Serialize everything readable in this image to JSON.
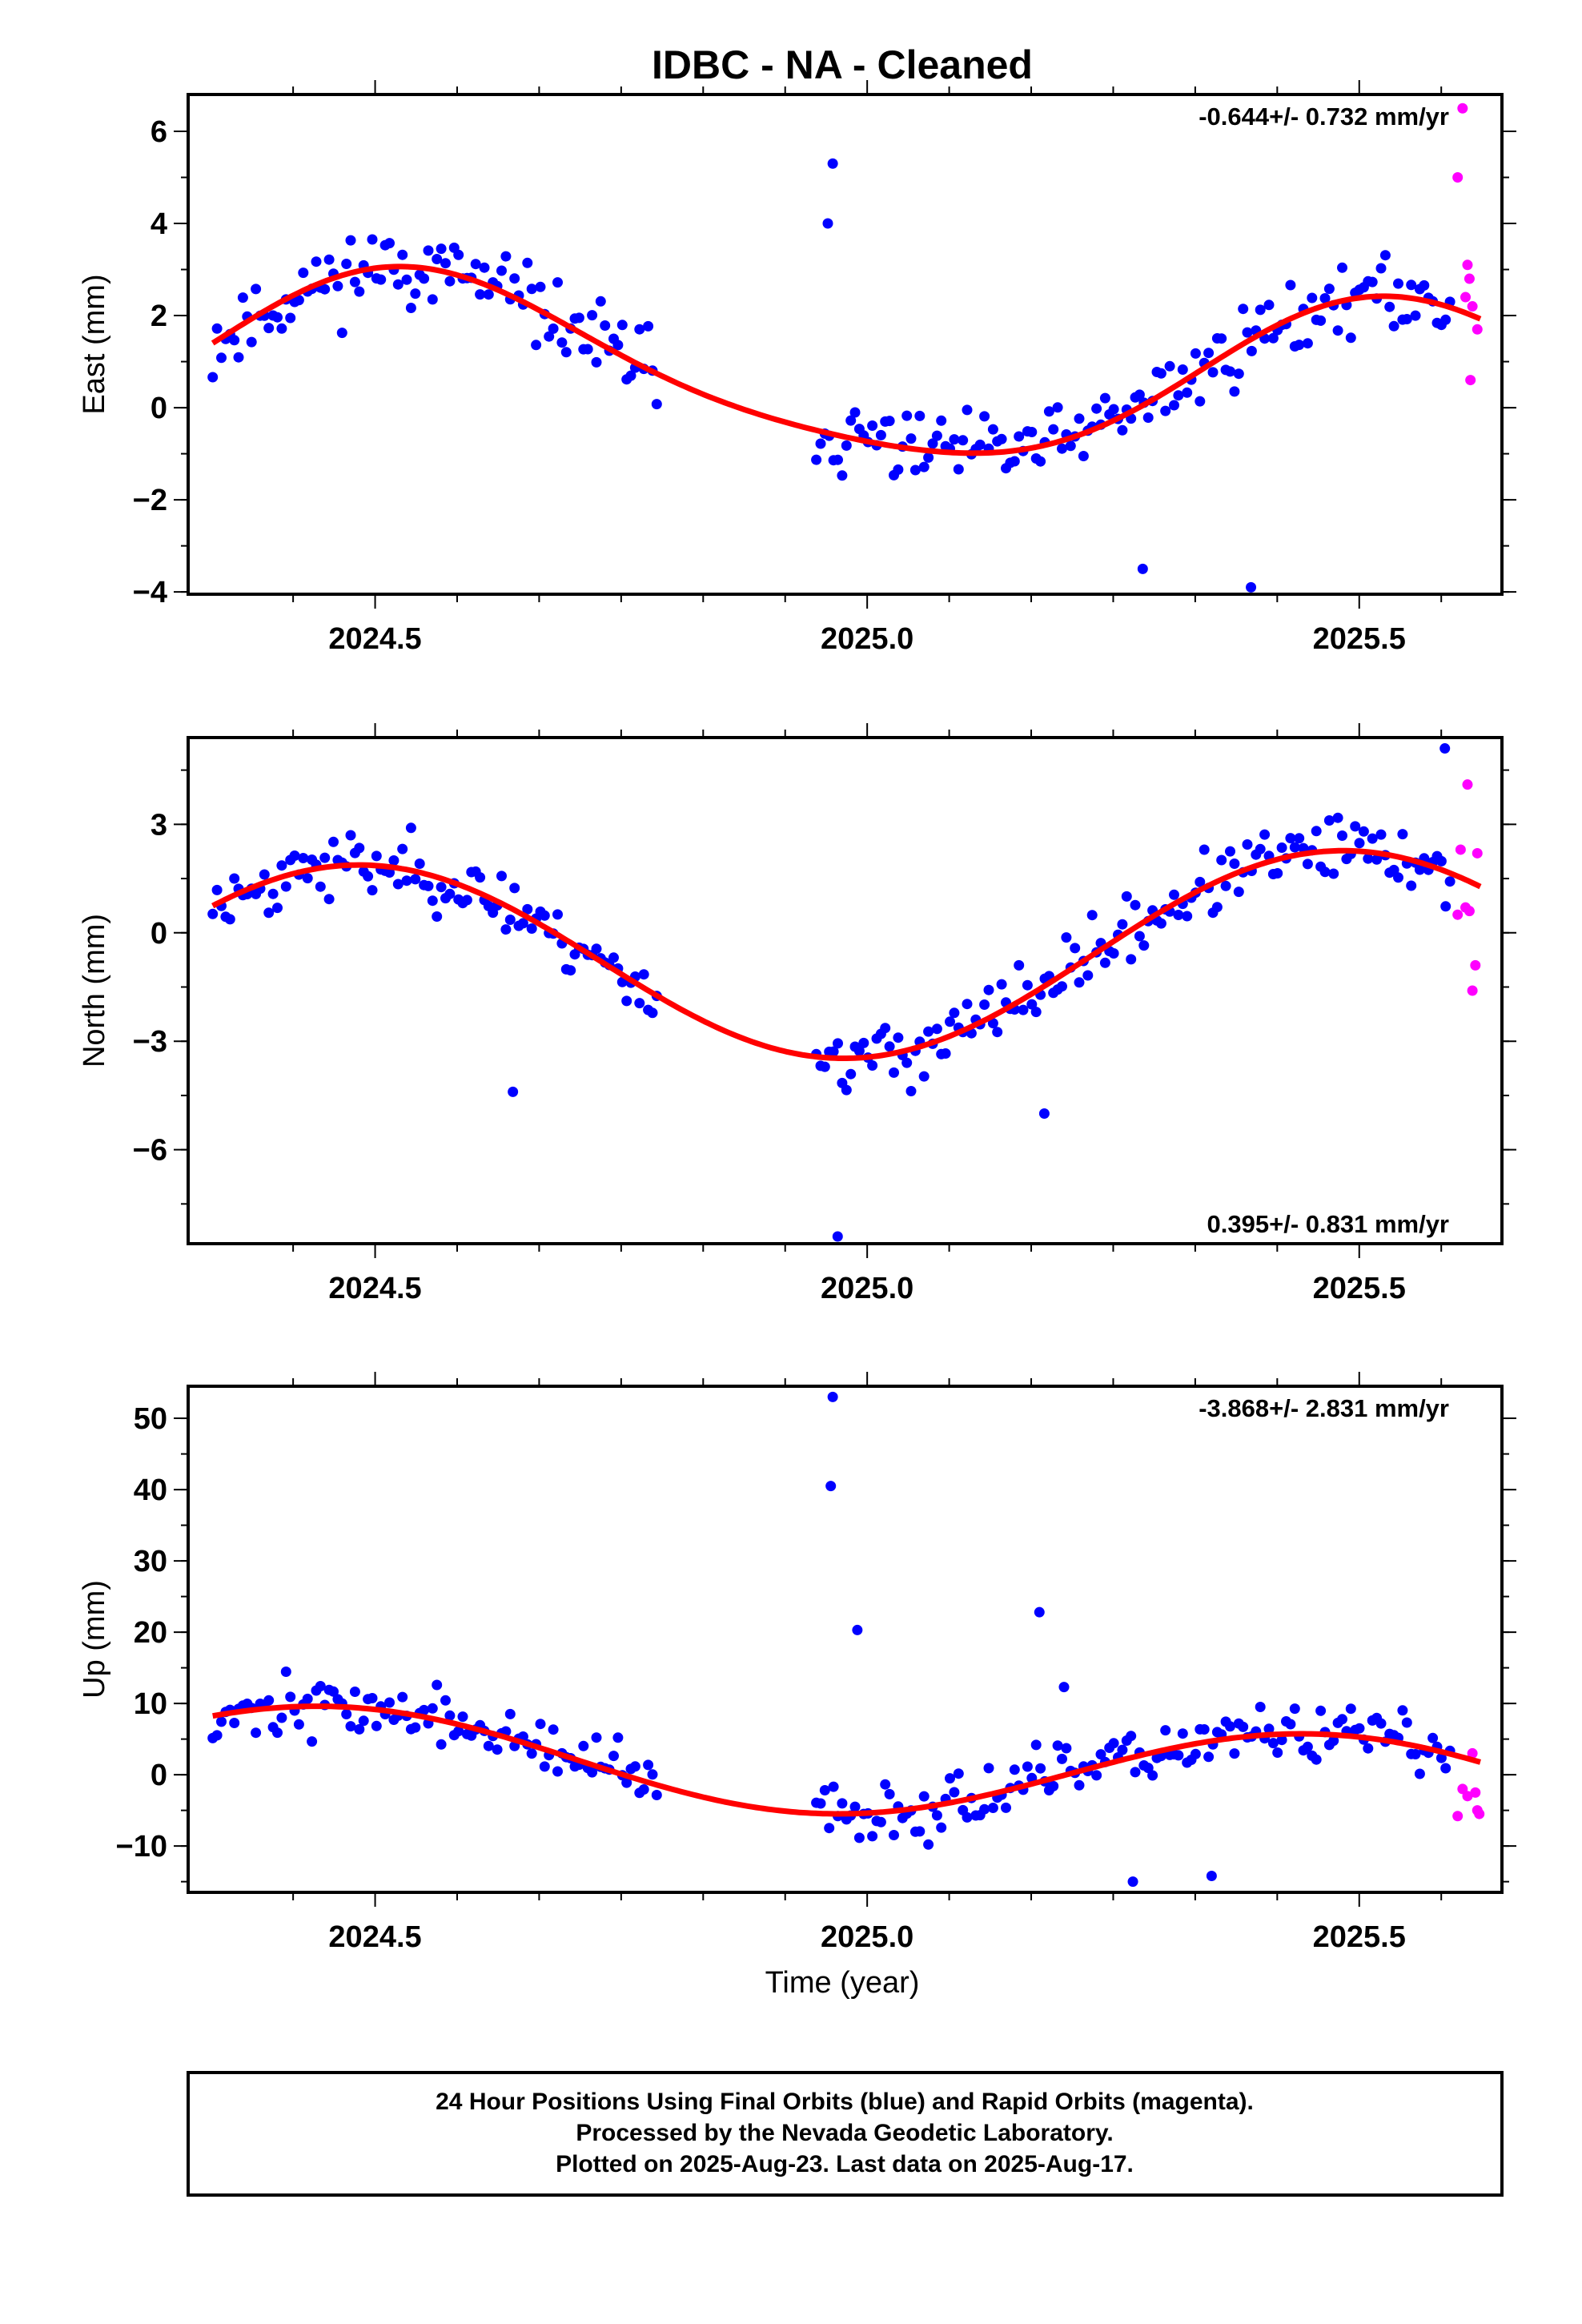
{
  "title": "IDBC  - NA - Cleaned",
  "colors": {
    "final": "#0000ff",
    "rapid": "#ff00ff",
    "fit": "#ff0000"
  },
  "xlabel": "Time (year)",
  "xrange": [
    2024.31,
    2025.645
  ],
  "xticks": [
    2024.5,
    2025.0,
    2025.5
  ],
  "xtick_labels": [
    "2024.5",
    "2025.0",
    "2025.5"
  ],
  "footer": {
    "line1": "24 Hour Positions Using Final Orbits (blue) and Rapid Orbits (magenta).",
    "line2": "Processed by the Nevada Geodetic Laboratory.",
    "line3": "Plotted on 2025-Aug-23. Last data on 2025-Aug-17."
  },
  "chart_data": [
    {
      "type": "scatter",
      "ylabel": "East (mm)",
      "ylim": [
        -4.05,
        6.8
      ],
      "yticks": [
        -4,
        -2,
        0,
        2,
        4,
        6
      ],
      "ytick_labels": [
        "−4",
        "−2",
        "0",
        "2",
        "4",
        "6"
      ],
      "rate": "-0.644+/- 0.732 mm/yr",
      "rate_position": "top-right",
      "fit": {
        "mean": 0.72,
        "trend": -0.644,
        "ref": 2024.98,
        "sin": -0.55,
        "cos": -1.72,
        "sin2": 0.0,
        "cos2": 0.28
      },
      "final_end": 2025.595,
      "outliers": [
        [
          2024.965,
          5.3
        ],
        [
          2024.96,
          4.0
        ],
        [
          2025.39,
          -3.9
        ],
        [
          2025.28,
          -3.5
        ]
      ],
      "rapid_points": [
        [
          2025.605,
          6.5
        ],
        [
          2025.6,
          5.0
        ],
        [
          2025.61,
          3.1
        ],
        [
          2025.612,
          2.8
        ],
        [
          2025.608,
          2.4
        ],
        [
          2025.615,
          2.2
        ],
        [
          2025.62,
          1.7
        ],
        [
          2025.613,
          0.6
        ]
      ],
      "series": [
        {
          "name": "Final Orbits",
          "noise": 0.75,
          "seed": 11
        },
        {
          "name": "Rapid Orbits"
        },
        {
          "name": "Fit"
        }
      ]
    },
    {
      "type": "scatter",
      "ylabel": "North (mm)",
      "ylim": [
        -8.6,
        5.4
      ],
      "yticks": [
        -6,
        -3,
        0,
        3
      ],
      "ytick_labels": [
        "−6",
        "−3",
        "0",
        "3"
      ],
      "rate": "0.395+/- 0.831 mm/yr",
      "rate_position": "bottom-right",
      "fit": {
        "mean": -0.7,
        "trend": 0.395,
        "ref": 2024.98,
        "sin": 0.35,
        "cos": -2.75,
        "sin2": 0.0,
        "cos2": 0.0
      },
      "final_end": 2025.595,
      "outliers": [
        [
          2024.97,
          -8.4
        ],
        [
          2024.64,
          -4.4
        ],
        [
          2025.18,
          -5.0
        ],
        [
          2025.587,
          5.1
        ]
      ],
      "rapid_points": [
        [
          2025.61,
          4.1
        ],
        [
          2025.603,
          2.3
        ],
        [
          2025.62,
          2.2
        ],
        [
          2025.608,
          0.7
        ],
        [
          2025.612,
          0.6
        ],
        [
          2025.6,
          0.5
        ],
        [
          2025.618,
          -0.9
        ],
        [
          2025.615,
          -1.6
        ]
      ],
      "series": [
        {
          "name": "Final Orbits",
          "noise": 0.8,
          "seed": 23
        },
        {
          "name": "Rapid Orbits"
        },
        {
          "name": "Fit"
        }
      ]
    },
    {
      "type": "scatter",
      "ylabel": "Up (mm)",
      "ylim": [
        -16.5,
        54.5
      ],
      "yticks": [
        -10,
        0,
        10,
        20,
        30,
        40,
        50
      ],
      "ytick_labels": [
        "−10",
        "0",
        "10",
        "20",
        "30",
        "40",
        "50"
      ],
      "rate": "-3.868+/- 2.831 mm/yr",
      "rate_position": "top-right",
      "fit": {
        "mean": 1.0,
        "trend": -3.868,
        "ref": 2024.98,
        "sin": 1.8,
        "cos": -6.3,
        "sin2": 0.0,
        "cos2": 0.0
      },
      "final_end": 2025.595,
      "outliers": [
        [
          2024.965,
          53.0
        ],
        [
          2024.963,
          40.5
        ],
        [
          2024.99,
          20.3
        ],
        [
          2025.175,
          22.8
        ],
        [
          2025.27,
          -15.0
        ],
        [
          2025.35,
          -14.2
        ],
        [
          2025.2,
          12.3
        ]
      ],
      "rapid_points": [
        [
          2025.615,
          3.0
        ],
        [
          2025.605,
          -2.0
        ],
        [
          2025.61,
          -3.0
        ],
        [
          2025.618,
          -2.5
        ],
        [
          2025.6,
          -5.8
        ],
        [
          2025.62,
          -5.0
        ],
        [
          2025.622,
          -5.5
        ]
      ],
      "series": [
        {
          "name": "Final Orbits",
          "noise": 3.6,
          "seed": 37
        },
        {
          "name": "Rapid Orbits"
        },
        {
          "name": "Fit"
        }
      ]
    }
  ]
}
